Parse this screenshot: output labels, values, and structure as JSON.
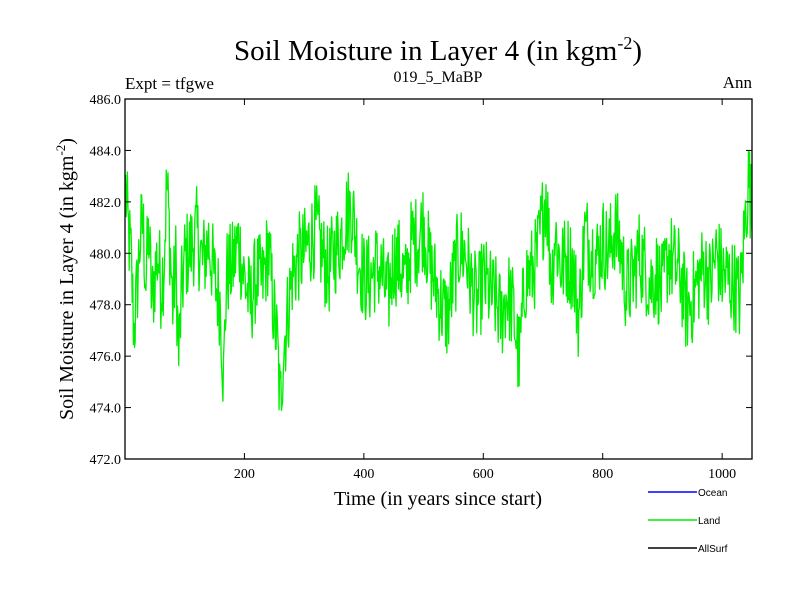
{
  "chart_data": {
    "type": "line",
    "title_main": "Soil Moisture in Layer 4 (in kgm",
    "title_sup": "-2",
    "title_close": ")",
    "subtitle_left": "Expt = tfgwe",
    "subtitle_center": "019_5_MaBP",
    "subtitle_right": "Ann",
    "xlabel": "Time (in years since start)",
    "ylabel_main": "Soil Moisture in Layer 4 (in kgm",
    "ylabel_sup": "-2",
    "ylabel_close": ")",
    "xlim": [
      0,
      1050
    ],
    "ylim": [
      472.0,
      486.0
    ],
    "xticks": [
      200,
      400,
      600,
      800,
      1000
    ],
    "yticks": [
      "472.0",
      "474.0",
      "476.0",
      "478.0",
      "480.0",
      "482.0",
      "484.0",
      "486.0"
    ],
    "legend": [
      {
        "name": "Ocean",
        "color": "#0000ff"
      },
      {
        "name": "Land",
        "color": "#00ee00"
      },
      {
        "name": "AllSurf",
        "color": "#000000"
      }
    ],
    "series": [
      {
        "name": "Land",
        "color": "#00ee00",
        "x_start": 1,
        "x_step": 1,
        "anchors_x": [
          1,
          5,
          10,
          15,
          20,
          25,
          30,
          35,
          40,
          45,
          50,
          55,
          60,
          65,
          70,
          75,
          80,
          85,
          90,
          95,
          100,
          110,
          120,
          130,
          140,
          150,
          160,
          165,
          170,
          180,
          190,
          200,
          210,
          220,
          230,
          240,
          250,
          255,
          260,
          265,
          270,
          280,
          290,
          300,
          310,
          320,
          330,
          340,
          350,
          360,
          370,
          380,
          390,
          400,
          410,
          420,
          430,
          440,
          450,
          460,
          470,
          480,
          490,
          500,
          510,
          520,
          530,
          540,
          550,
          560,
          570,
          580,
          590,
          600,
          610,
          620,
          630,
          640,
          650,
          660,
          670,
          680,
          690,
          700,
          705,
          710,
          715,
          720,
          730,
          740,
          750,
          760,
          770,
          780,
          790,
          800,
          810,
          820,
          830,
          840,
          850,
          860,
          870,
          880,
          890,
          900,
          910,
          920,
          930,
          940,
          950,
          960,
          970,
          980,
          990,
          1000,
          1010,
          1020,
          1030,
          1040,
          1045,
          1050
        ],
        "anchors_y": [
          482.5,
          481.0,
          479.8,
          477.0,
          478.5,
          480.5,
          481.2,
          479.0,
          480.8,
          478.0,
          479.2,
          480.0,
          478.8,
          479.5,
          482.8,
          480.5,
          478.0,
          479.6,
          476.0,
          478.5,
          479.8,
          480.2,
          480.8,
          479.6,
          480.5,
          479.0,
          478.0,
          475.0,
          479.2,
          479.5,
          480.5,
          479.0,
          478.0,
          479.2,
          478.8,
          480.2,
          477.5,
          476.5,
          474.0,
          476.2,
          477.2,
          479.2,
          479.8,
          480.0,
          480.5,
          481.0,
          480.0,
          479.2,
          480.0,
          480.5,
          481.5,
          481.8,
          480.0,
          479.0,
          479.0,
          479.5,
          479.2,
          478.2,
          479.8,
          479.6,
          478.8,
          480.5,
          480.5,
          481.2,
          479.6,
          478.8,
          478.0,
          477.5,
          479.0,
          480.2,
          480.0,
          478.8,
          478.0,
          479.0,
          478.5,
          478.2,
          477.5,
          478.5,
          477.8,
          475.8,
          479.0,
          479.2,
          479.8,
          481.5,
          482.5,
          480.5,
          479.0,
          480.8,
          479.5,
          479.8,
          479.5,
          477.5,
          480.8,
          480.2,
          479.8,
          480.5,
          480.0,
          481.0,
          480.2,
          478.5,
          479.0,
          480.0,
          479.5,
          478.8,
          479.2,
          478.5,
          480.0,
          479.5,
          479.2,
          477.8,
          478.2,
          479.0,
          479.5,
          478.8,
          480.0,
          479.2,
          479.0,
          478.8,
          478.2,
          481.8,
          483.0,
          481.2
        ],
        "noise_amplitude": 1.8,
        "y_min": 473.1,
        "y_max": 484.2
      }
    ]
  }
}
